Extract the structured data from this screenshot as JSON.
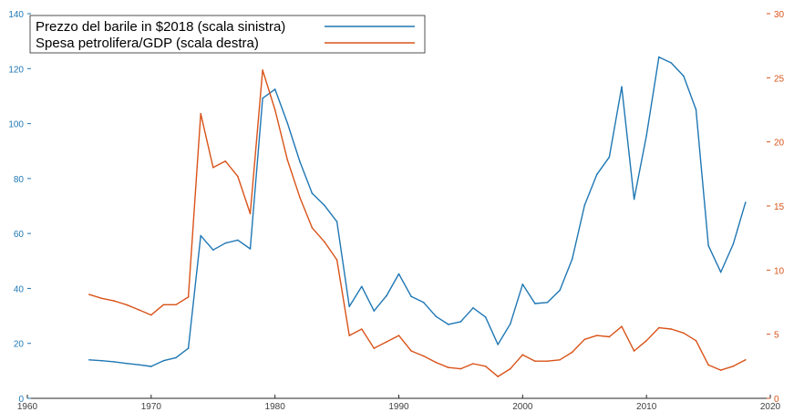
{
  "chart_data": {
    "type": "line",
    "title": "",
    "xlabel": "",
    "ylabel_left": "",
    "ylabel_right": "",
    "xlim": [
      1960,
      2020
    ],
    "ylim_left": [
      0,
      140
    ],
    "ylim_right": [
      0,
      30
    ],
    "x_ticks": [
      "1960",
      "1970",
      "1980",
      "1990",
      "2000",
      "2010",
      "2020"
    ],
    "y_left_ticks": [
      "0",
      "20",
      "40",
      "60",
      "80",
      "100",
      "120",
      "140"
    ],
    "y_right_ticks": [
      "0",
      "5",
      "10",
      "15",
      "20",
      "25",
      "30"
    ],
    "grid": false,
    "legend_position": "top-left",
    "series": [
      {
        "name": "Prezzo del barile in $2018 (scala sinistra)",
        "axis": "left",
        "color": "#1f77b4",
        "x": [
          1965,
          1966,
          1967,
          1968,
          1969,
          1970,
          1971,
          1972,
          1973,
          1974,
          1975,
          1976,
          1977,
          1978,
          1979,
          1980,
          1981,
          1982,
          1983,
          1984,
          1985,
          1986,
          1987,
          1988,
          1989,
          1990,
          1991,
          1992,
          1993,
          1994,
          1995,
          1996,
          1997,
          1998,
          1999,
          2000,
          2001,
          2002,
          2003,
          2004,
          2005,
          2006,
          2007,
          2008,
          2009,
          2010,
          2011,
          2012,
          2013,
          2014,
          2015,
          2016,
          2017,
          2018
        ],
        "values": [
          14,
          13.7,
          13.3,
          12.7,
          12.2,
          11.6,
          13.7,
          14.8,
          18.2,
          59.2,
          54,
          56.5,
          57.6,
          54.4,
          109.2,
          112.5,
          100.2,
          86.3,
          74.6,
          70.2,
          64.3,
          33.4,
          40.7,
          31.8,
          37.3,
          45.3,
          37.1,
          34.9,
          29.8,
          26.9,
          27.9,
          32.9,
          29.6,
          19.6,
          27.1,
          41.5,
          34.5,
          34.9,
          39.3,
          50.7,
          70.3,
          81.5,
          87.8,
          113.4,
          72.5,
          95.7,
          124.2,
          122.1,
          117.3,
          105.1,
          55.6,
          45.9,
          56.1,
          71.3
        ]
      },
      {
        "name": "Spesa petrolifera/GDP (scala destra)",
        "axis": "right",
        "color": "#d95319",
        "x": [
          1965,
          1966,
          1967,
          1968,
          1969,
          1970,
          1971,
          1972,
          1973,
          1974,
          1975,
          1976,
          1977,
          1978,
          1979,
          1980,
          1981,
          1982,
          1983,
          1984,
          1985,
          1986,
          1987,
          1988,
          1989,
          1990,
          1991,
          1992,
          1993,
          1994,
          1995,
          1996,
          1997,
          1998,
          1999,
          2000,
          2001,
          2002,
          2003,
          2004,
          2005,
          2006,
          2007,
          2008,
          2009,
          2010,
          2011,
          2012,
          2013,
          2014,
          2015,
          2016,
          2017,
          2018
        ],
        "values": [
          8.1,
          7.8,
          7.6,
          7.3,
          6.9,
          6.5,
          7.3,
          7.3,
          7.9,
          22.2,
          18,
          18.5,
          17.3,
          14.4,
          25.6,
          22.5,
          18.6,
          15.7,
          13.3,
          12.2,
          10.8,
          4.9,
          5.4,
          3.9,
          4.4,
          4.9,
          3.7,
          3.3,
          2.8,
          2.4,
          2.3,
          2.7,
          2.5,
          1.7,
          2.3,
          3.4,
          2.9,
          2.9,
          3,
          3.6,
          4.6,
          4.9,
          4.8,
          5.6,
          3.7,
          4.5,
          5.5,
          5.4,
          5.1,
          4.5,
          2.6,
          2.2,
          2.5,
          3
        ]
      }
    ]
  }
}
